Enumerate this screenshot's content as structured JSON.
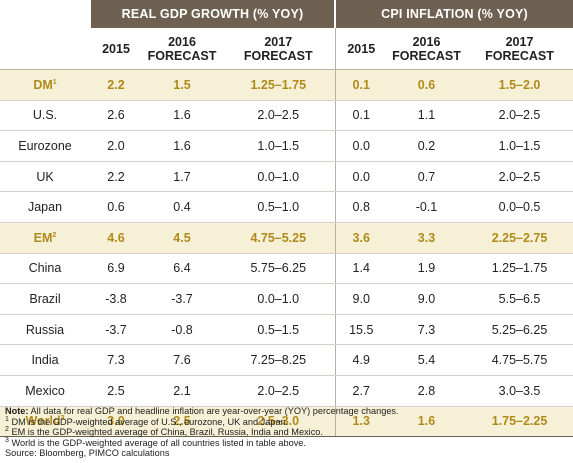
{
  "header": {
    "group1": "REAL GDP GROWTH (% YOY)",
    "group2": "CPI INFLATION (% YOY)",
    "sub": {
      "c2015": "2015",
      "c2016": "2016",
      "c2016b": "FORECAST",
      "c2017": "2017",
      "c2017b": "FORECAST"
    }
  },
  "rows": [
    {
      "label": "DM",
      "sup": "1",
      "gdp": [
        "2.2",
        "1.5",
        "1.25–1.75"
      ],
      "cpi": [
        "0.1",
        "0.6",
        "1.5–2.0"
      ]
    },
    {
      "label": "U.S.",
      "sup": "",
      "gdp": [
        "2.6",
        "1.6",
        "2.0–2.5"
      ],
      "cpi": [
        "0.1",
        "1.1",
        "2.0–2.5"
      ]
    },
    {
      "label": "Eurozone",
      "sup": "",
      "gdp": [
        "2.0",
        "1.6",
        "1.0–1.5"
      ],
      "cpi": [
        "0.0",
        "0.2",
        "1.0–1.5"
      ]
    },
    {
      "label": "UK",
      "sup": "",
      "gdp": [
        "2.2",
        "1.7",
        "0.0–1.0"
      ],
      "cpi": [
        "0.0",
        "0.7",
        "2.0–2.5"
      ]
    },
    {
      "label": "Japan",
      "sup": "",
      "gdp": [
        "0.6",
        "0.4",
        "0.5–1.0"
      ],
      "cpi": [
        "0.8",
        "-0.1",
        "0.0–0.5"
      ]
    },
    {
      "label": "EM",
      "sup": "2",
      "gdp": [
        "4.6",
        "4.5",
        "4.75–5.25"
      ],
      "cpi": [
        "3.6",
        "3.3",
        "2.25–2.75"
      ]
    },
    {
      "label": "China",
      "sup": "",
      "gdp": [
        "6.9",
        "6.4",
        "5.75–6.25"
      ],
      "cpi": [
        "1.4",
        "1.9",
        "1.25–1.75"
      ]
    },
    {
      "label": "Brazil",
      "sup": "",
      "gdp": [
        "-3.8",
        "-3.7",
        "0.0–1.0"
      ],
      "cpi": [
        "9.0",
        "9.0",
        "5.5–6.5"
      ]
    },
    {
      "label": "Russia",
      "sup": "",
      "gdp": [
        "-3.7",
        "-0.8",
        "0.5–1.5"
      ],
      "cpi": [
        "15.5",
        "7.3",
        "5.25–6.25"
      ]
    },
    {
      "label": "India",
      "sup": "",
      "gdp": [
        "7.3",
        "7.6",
        "7.25–8.25"
      ],
      "cpi": [
        "4.9",
        "5.4",
        "4.75–5.75"
      ]
    },
    {
      "label": "Mexico",
      "sup": "",
      "gdp": [
        "2.5",
        "2.1",
        "2.0–2.5"
      ],
      "cpi": [
        "2.7",
        "2.8",
        "3.0–3.5"
      ]
    },
    {
      "label": "World",
      "sup": "3",
      "gdp": [
        "3.0",
        "2.5",
        "2.5–3.0"
      ],
      "cpi": [
        "1.3",
        "1.6",
        "1.75–2.25"
      ]
    }
  ],
  "notes": {
    "note_label": "Note:",
    "note_text": " All data for real GDP and headline inflation are year-over-year (YOY) percentage changes.",
    "fn1_sup": "1",
    "fn1": " DM is the GDP-weighted average of U.S., eurozone, UK and Japan.",
    "fn2_sup": "2",
    "fn2": " EM is the GDP-weighted average of China, Brazil, Russia, India and Mexico.",
    "fn3_sup": "3",
    "fn3": " World is the GDP-weighted average of all countries listed in table above.",
    "source": "Source: Bloomberg, PIMCO calculations"
  },
  "colors": {
    "header_bg": "#6e6151",
    "highlight_bg": "#f6f0d6",
    "highlight_text": "#b08a1c"
  }
}
